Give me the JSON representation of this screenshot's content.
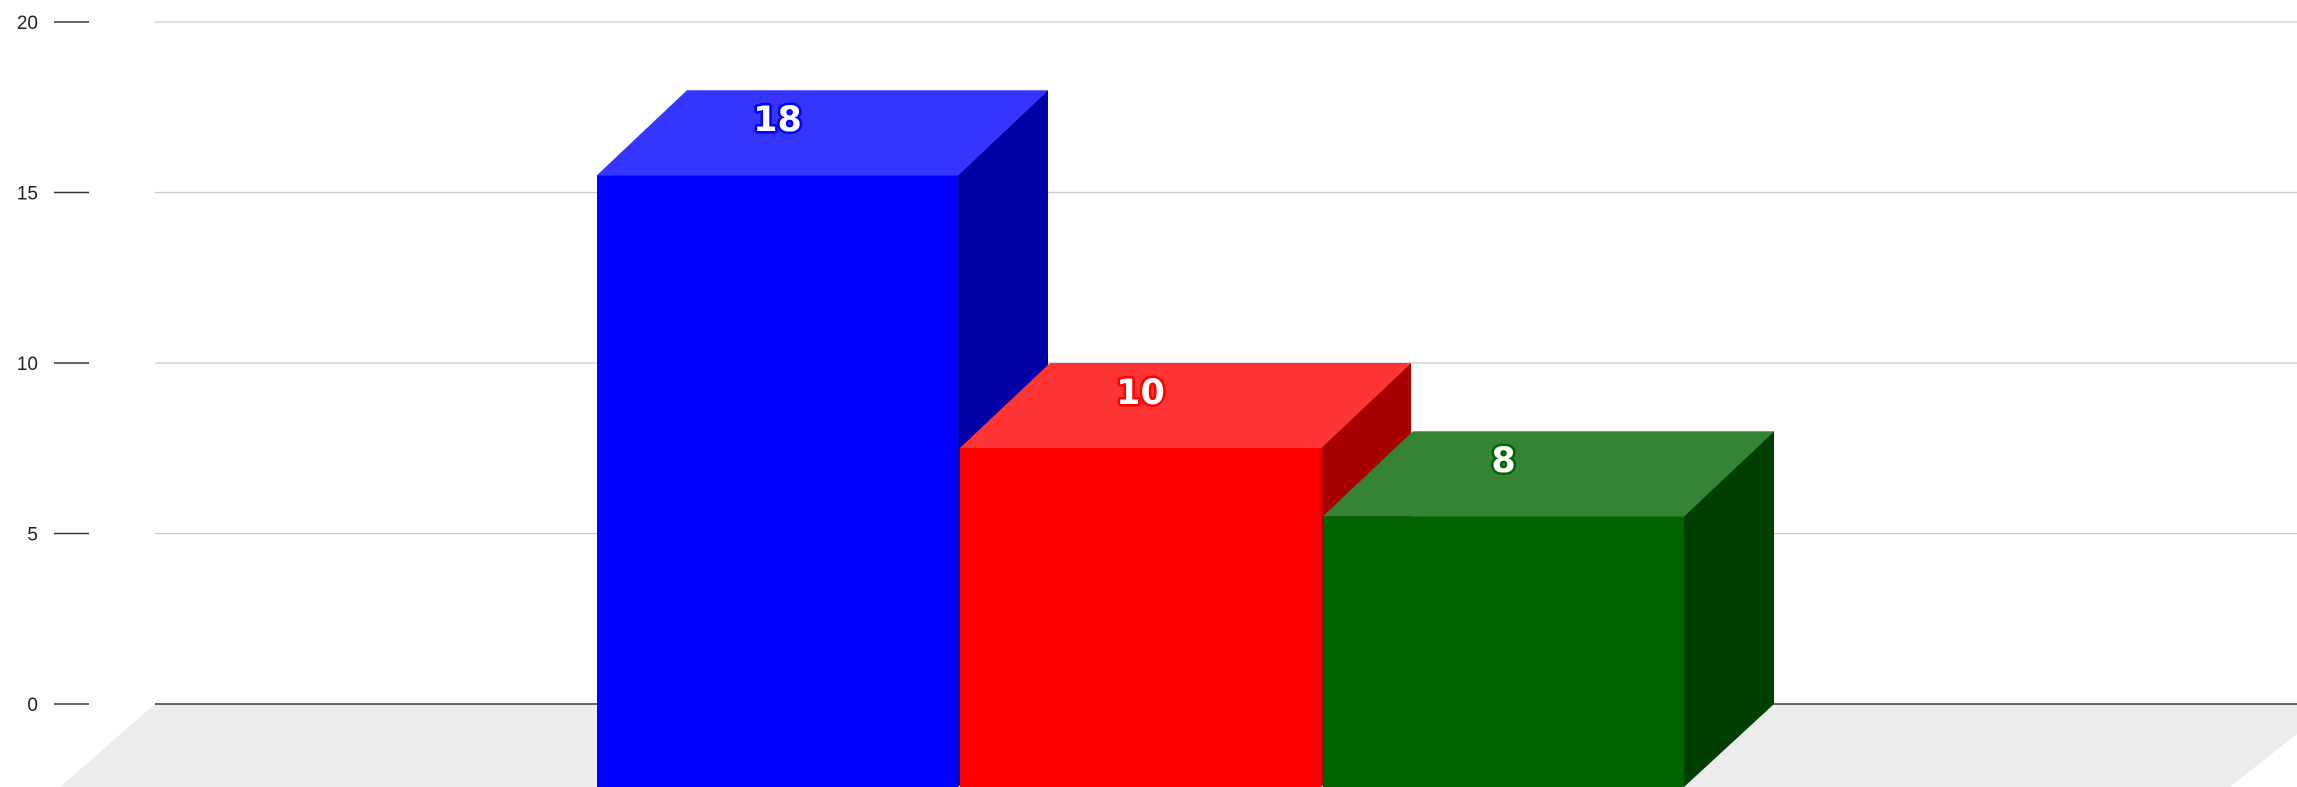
{
  "chart_data": {
    "type": "bar",
    "style": "3d-column",
    "categories": [
      "",
      "",
      ""
    ],
    "values": [
      18,
      10,
      8
    ],
    "colors": {
      "bars": [
        "#0000ff",
        "#ff0000",
        "#006400"
      ],
      "tops": [
        "#3535ff",
        "#ff3535",
        "#358435"
      ],
      "sides": [
        "#0000a8",
        "#a80000",
        "#003f00"
      ],
      "label_outline": [
        "#0000ff",
        "#ff0000",
        "#006400"
      ]
    },
    "title": "",
    "xlabel": "",
    "ylabel": "",
    "ylim": [
      0,
      20
    ],
    "yticks": [
      0,
      5,
      10,
      15,
      20
    ],
    "grid": true,
    "data_labels": true
  }
}
